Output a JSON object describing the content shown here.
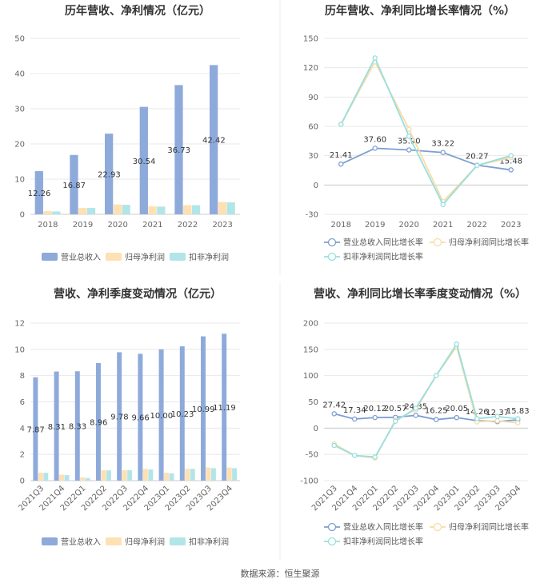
{
  "source_text": "数据来源：恒生聚源",
  "colors": {
    "revenue": "#8eaadb",
    "net_profit": "#ffe0b2",
    "deducted_profit": "#b2e5e8",
    "rev_growth_line": "#7b9fd1",
    "np_growth_line": "#f9dca6",
    "dp_growth_line": "#96dfe0",
    "grid": "#e8e8e8",
    "axis": "#cccccc"
  },
  "chart_data": [
    {
      "type": "bar",
      "title": "历年营收、净利情况（亿元）",
      "categories": [
        "2018",
        "2019",
        "2020",
        "2021",
        "2022",
        "2023"
      ],
      "ylim": [
        0,
        50
      ],
      "yticks": [
        0,
        10,
        20,
        30,
        40,
        50
      ],
      "series": [
        {
          "name": "营业总收入",
          "values": [
            12.26,
            16.87,
            22.93,
            30.54,
            36.73,
            42.42
          ],
          "labels": [
            "12.26",
            "16.87",
            "22.93",
            "30.54",
            "36.73",
            "42.42"
          ]
        },
        {
          "name": "归母净利润",
          "values": [
            0.9,
            1.8,
            2.8,
            2.3,
            2.6,
            3.5
          ]
        },
        {
          "name": "扣非净利润",
          "values": [
            0.8,
            1.8,
            2.7,
            2.2,
            2.6,
            3.4
          ]
        }
      ],
      "legend": "bottom"
    },
    {
      "type": "line",
      "title": "历年营收、净利同比增长率情况（%）",
      "categories": [
        "2018",
        "2019",
        "2020",
        "2021",
        "2022",
        "2023"
      ],
      "ylim": [
        -30,
        150
      ],
      "yticks": [
        -30,
        0,
        30,
        60,
        90,
        120,
        150
      ],
      "series": [
        {
          "name": "营业总收入同比增长率",
          "values": [
            21.41,
            37.6,
            35.9,
            33.22,
            20.27,
            15.48
          ],
          "labels": [
            "21.41",
            "37.60",
            "35.90",
            "33.22",
            "20.27",
            "15.48"
          ]
        },
        {
          "name": "归母净利润同比增长率",
          "values": [
            62,
            126,
            57,
            -17,
            20,
            28
          ]
        },
        {
          "name": "扣非净利润同比增长率",
          "values": [
            62,
            130,
            50,
            -20,
            20,
            30
          ]
        }
      ],
      "legend": "bottom"
    },
    {
      "type": "bar",
      "title": "营收、净利季度变动情况（亿元）",
      "categories": [
        "2021Q3",
        "2021Q4",
        "2022Q1",
        "2022Q2",
        "2022Q3",
        "2022Q4",
        "2023Q1",
        "2023Q2",
        "2023Q3",
        "2023Q4"
      ],
      "ylim": [
        0,
        12
      ],
      "yticks": [
        0,
        2,
        4,
        6,
        8,
        10,
        12
      ],
      "series": [
        {
          "name": "营业总收入",
          "values": [
            7.87,
            8.31,
            8.33,
            8.96,
            9.78,
            9.66,
            10.0,
            10.23,
            10.99,
            11.19
          ],
          "labels": [
            "7.87",
            "8.31",
            "8.33",
            "8.96",
            "9.78",
            "9.66",
            "10.00",
            "10.23",
            "10.99",
            "11.19"
          ]
        },
        {
          "name": "归母净利润",
          "values": [
            0.6,
            0.45,
            0.25,
            0.8,
            0.8,
            0.9,
            0.6,
            0.9,
            1.0,
            1.0
          ]
        },
        {
          "name": "扣非净利润",
          "values": [
            0.6,
            0.42,
            0.2,
            0.78,
            0.8,
            0.85,
            0.55,
            0.9,
            0.95,
            0.95
          ]
        }
      ],
      "legend": "bottom"
    },
    {
      "type": "line",
      "title": "营收、净利同比增长率季度变动情况（%）",
      "categories": [
        "2021Q3",
        "2021Q4",
        "2022Q1",
        "2022Q2",
        "2022Q3",
        "2022Q4",
        "2023Q1",
        "2023Q2",
        "2023Q3",
        "2023Q4"
      ],
      "ylim": [
        -100,
        200
      ],
      "yticks": [
        -100,
        -50,
        0,
        50,
        100,
        150,
        200
      ],
      "series": [
        {
          "name": "营业总收入同比增长率",
          "values": [
            27.42,
            17.34,
            20.12,
            20.57,
            24.35,
            16.25,
            20.05,
            14.26,
            12.37,
            15.83
          ],
          "labels": [
            "27.42",
            "17.34",
            "20.12",
            "20.57",
            "24.35",
            "16.25",
            "20.05",
            "14.26",
            "12.37",
            "15.83"
          ]
        },
        {
          "name": "归母净利润同比增长率",
          "values": [
            -30,
            -52,
            -57,
            15,
            35,
            100,
            155,
            12,
            14,
            10
          ]
        },
        {
          "name": "扣非净利润同比增长率",
          "values": [
            -33,
            -52,
            -55,
            13,
            38,
            100,
            160,
            18,
            22,
            18
          ]
        }
      ],
      "legend": "bottom"
    }
  ]
}
